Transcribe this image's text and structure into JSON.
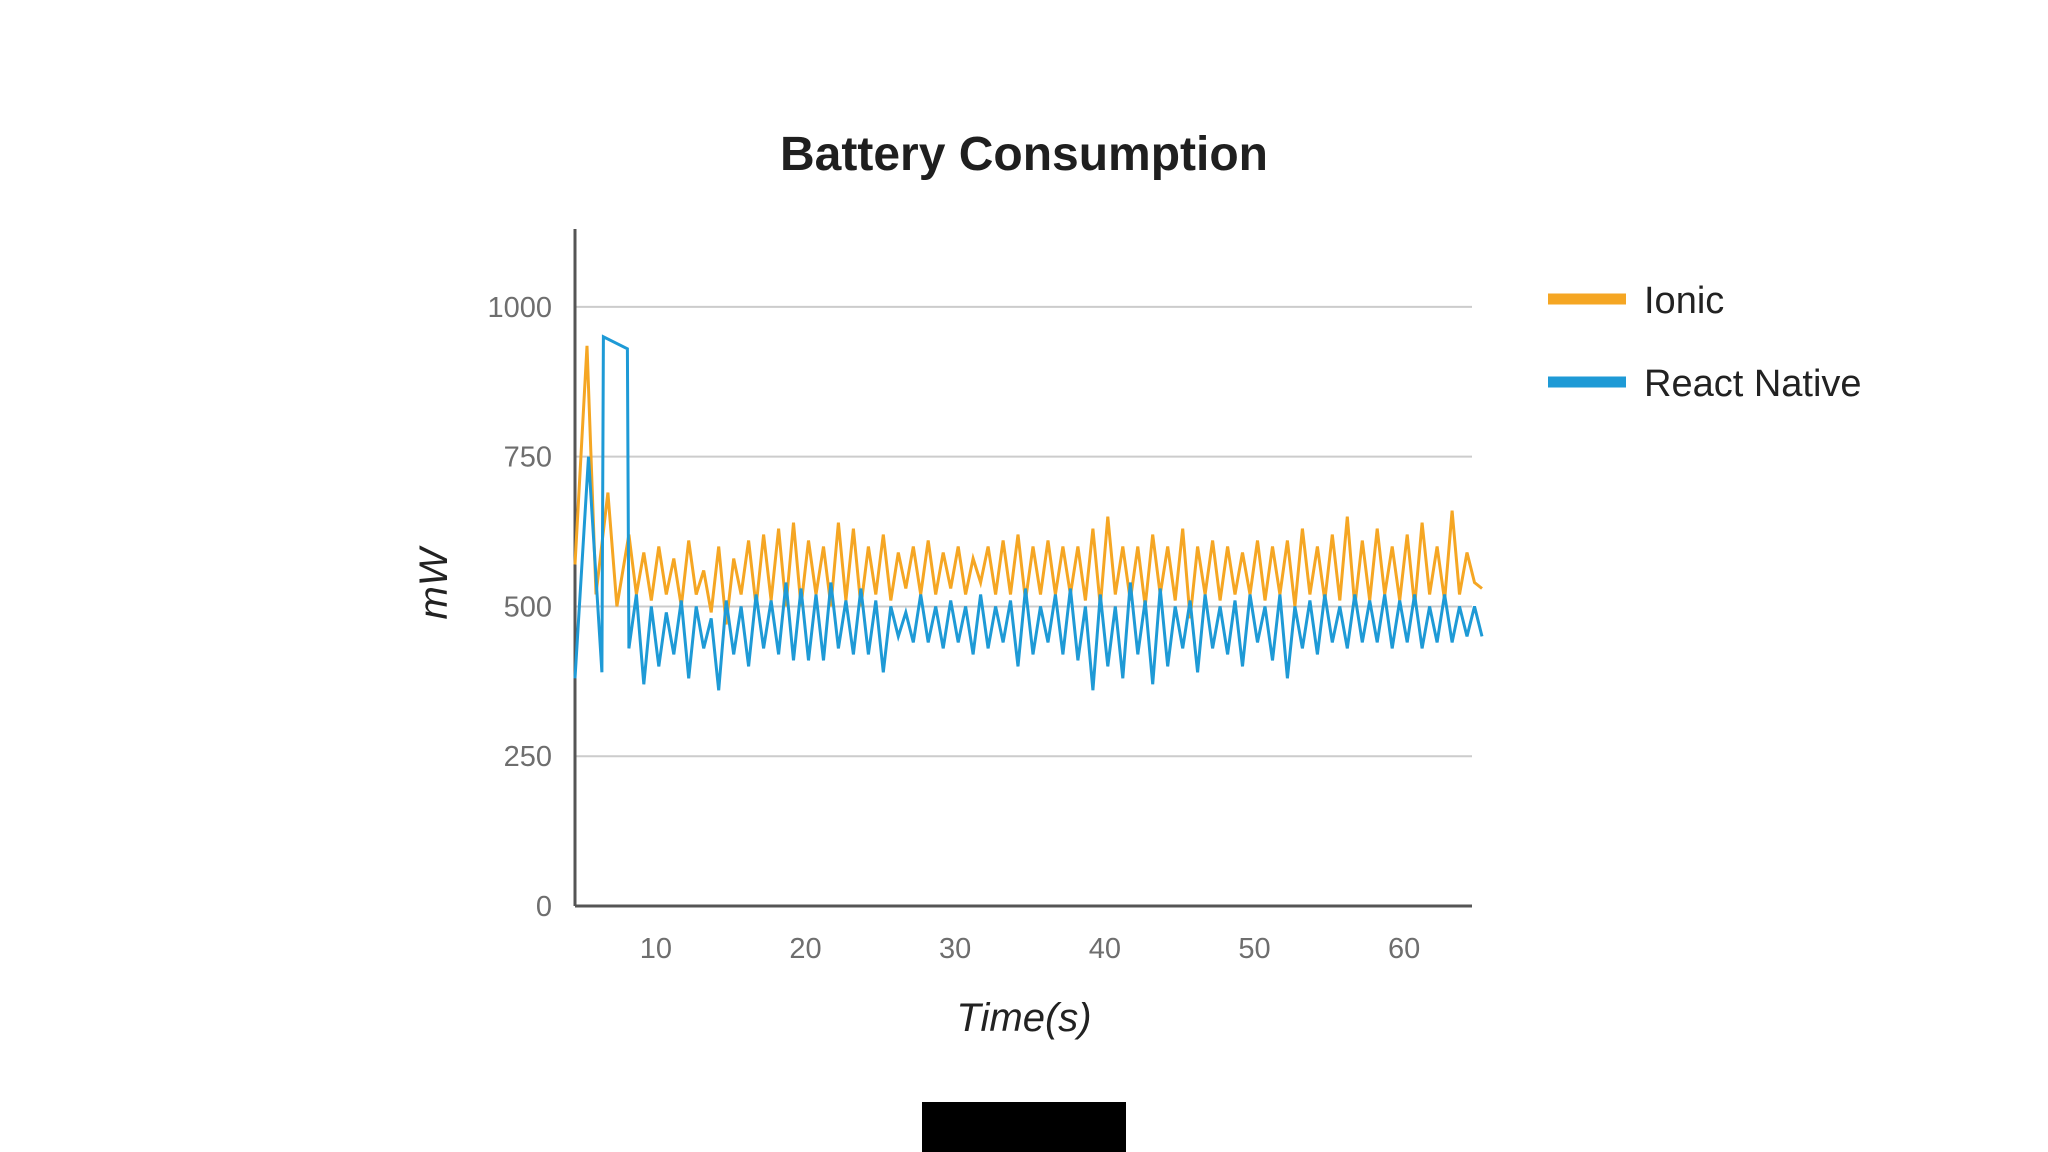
{
  "colors": {
    "background": "#ffffff",
    "grid": "#cccccc",
    "axis": "#555555",
    "ionic": "#f5a623",
    "react_native": "#1e9ad6",
    "bottom_block": "#000000"
  },
  "chart_data": {
    "type": "line",
    "title": "Battery Consumption",
    "xlabel": "Time(s)",
    "ylabel": "mW",
    "xlim": [
      4.6,
      65.2
    ],
    "ylim": [
      0,
      1130
    ],
    "xticks": [
      10,
      20,
      30,
      40,
      50,
      60
    ],
    "yticks": [
      0,
      250,
      500,
      750,
      1000
    ],
    "grid": "horizontal",
    "legend_position": "right",
    "series": [
      {
        "name": "Ionic",
        "color": "#f5a623",
        "x": [
          4.6,
          5.4,
          6.0,
          6.8,
          7.4,
          8.2,
          8.7,
          9.2,
          9.7,
          10.2,
          10.7,
          11.2,
          11.7,
          12.2,
          12.7,
          13.2,
          13.7,
          14.2,
          14.7,
          15.2,
          15.7,
          16.2,
          16.7,
          17.2,
          17.7,
          18.2,
          18.7,
          19.2,
          19.7,
          20.2,
          20.7,
          21.2,
          21.7,
          22.2,
          22.7,
          23.2,
          23.7,
          24.2,
          24.7,
          25.2,
          25.7,
          26.2,
          26.7,
          27.2,
          27.7,
          28.2,
          28.7,
          29.2,
          29.7,
          30.2,
          30.7,
          31.2,
          31.7,
          32.2,
          32.7,
          33.2,
          33.7,
          34.2,
          34.7,
          35.2,
          35.7,
          36.2,
          36.7,
          37.2,
          37.7,
          38.2,
          38.7,
          39.2,
          39.7,
          40.2,
          40.7,
          41.2,
          41.7,
          42.2,
          42.7,
          43.2,
          43.7,
          44.2,
          44.7,
          45.2,
          45.7,
          46.2,
          46.7,
          47.2,
          47.7,
          48.2,
          48.7,
          49.2,
          49.7,
          50.2,
          50.7,
          51.2,
          51.7,
          52.2,
          52.7,
          53.2,
          53.7,
          54.2,
          54.7,
          55.2,
          55.7,
          56.2,
          56.7,
          57.2,
          57.7,
          58.2,
          58.7,
          59.2,
          59.7,
          60.2,
          60.7,
          61.2,
          61.7,
          62.2,
          62.7,
          63.2,
          63.7,
          64.2,
          64.7,
          65.2
        ],
        "y": [
          570,
          935,
          520,
          690,
          500,
          620,
          520,
          590,
          510,
          600,
          520,
          580,
          500,
          610,
          520,
          560,
          490,
          600,
          470,
          580,
          520,
          610,
          500,
          620,
          510,
          630,
          500,
          640,
          500,
          610,
          520,
          600,
          500,
          640,
          510,
          630,
          500,
          600,
          520,
          620,
          510,
          590,
          530,
          600,
          520,
          610,
          520,
          590,
          530,
          600,
          520,
          580,
          540,
          600,
          520,
          610,
          520,
          620,
          510,
          600,
          520,
          610,
          520,
          600,
          520,
          600,
          510,
          630,
          500,
          650,
          520,
          600,
          510,
          600,
          500,
          620,
          520,
          600,
          510,
          630,
          480,
          600,
          520,
          610,
          510,
          600,
          520,
          590,
          520,
          610,
          510,
          600,
          520,
          610,
          500,
          630,
          520,
          600,
          510,
          620,
          510,
          650,
          500,
          610,
          510,
          630,
          520,
          600,
          510,
          620,
          500,
          640,
          520,
          600,
          510,
          660,
          520,
          590,
          540,
          530
        ]
      },
      {
        "name": "React Native",
        "color": "#1e9ad6",
        "x": [
          4.6,
          5.5,
          6.4,
          6.5,
          8.1,
          8.2,
          8.7,
          9.2,
          9.7,
          10.2,
          10.7,
          11.2,
          11.7,
          12.2,
          12.7,
          13.2,
          13.7,
          14.2,
          14.7,
          15.2,
          15.7,
          16.2,
          16.7,
          17.2,
          17.7,
          18.2,
          18.7,
          19.2,
          19.7,
          20.2,
          20.7,
          21.2,
          21.7,
          22.2,
          22.7,
          23.2,
          23.7,
          24.2,
          24.7,
          25.2,
          25.7,
          26.2,
          26.7,
          27.2,
          27.7,
          28.2,
          28.7,
          29.2,
          29.7,
          30.2,
          30.7,
          31.2,
          31.7,
          32.2,
          32.7,
          33.2,
          33.7,
          34.2,
          34.7,
          35.2,
          35.7,
          36.2,
          36.7,
          37.2,
          37.7,
          38.2,
          38.7,
          39.2,
          39.7,
          40.2,
          40.7,
          41.2,
          41.7,
          42.2,
          42.7,
          43.2,
          43.7,
          44.2,
          44.7,
          45.2,
          45.7,
          46.2,
          46.7,
          47.2,
          47.7,
          48.2,
          48.7,
          49.2,
          49.7,
          50.2,
          50.7,
          51.2,
          51.7,
          52.2,
          52.7,
          53.2,
          53.7,
          54.2,
          54.7,
          55.2,
          55.7,
          56.2,
          56.7,
          57.2,
          57.7,
          58.2,
          58.7,
          59.2,
          59.7,
          60.2,
          60.7,
          61.2,
          61.7,
          62.2,
          62.7,
          63.2,
          63.7,
          64.2,
          64.7,
          65.2
        ],
        "y": [
          380,
          750,
          390,
          950,
          930,
          430,
          520,
          370,
          500,
          400,
          490,
          420,
          510,
          380,
          500,
          430,
          480,
          360,
          510,
          420,
          500,
          400,
          520,
          430,
          510,
          420,
          540,
          410,
          530,
          410,
          520,
          410,
          540,
          430,
          510,
          420,
          530,
          420,
          510,
          390,
          500,
          450,
          490,
          440,
          520,
          440,
          500,
          430,
          510,
          440,
          500,
          420,
          520,
          430,
          500,
          440,
          510,
          400,
          530,
          420,
          500,
          440,
          520,
          420,
          530,
          410,
          500,
          360,
          520,
          400,
          500,
          380,
          540,
          420,
          510,
          370,
          530,
          400,
          500,
          430,
          510,
          390,
          520,
          430,
          500,
          420,
          510,
          400,
          520,
          440,
          500,
          410,
          520,
          380,
          500,
          430,
          510,
          420,
          520,
          440,
          500,
          430,
          520,
          440,
          510,
          440,
          520,
          430,
          510,
          440,
          520,
          430,
          500,
          440,
          520,
          440,
          500,
          450,
          500,
          450
        ]
      }
    ]
  }
}
